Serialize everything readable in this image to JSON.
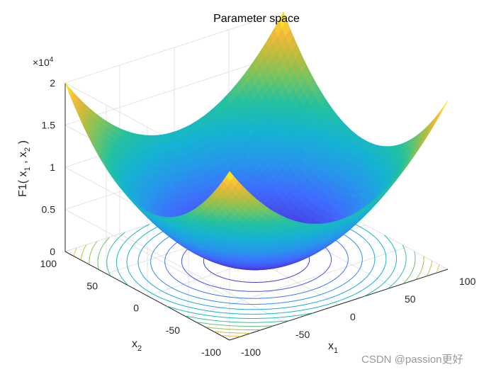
{
  "chart_data": {
    "type": "surface",
    "title": "Parameter space",
    "function": "x1^2 + x2^2",
    "x1": {
      "label_base": "x",
      "label_sub": "1",
      "range": [
        -100,
        100
      ],
      "ticks": [
        "-100",
        "-50",
        "0",
        "50",
        "100"
      ]
    },
    "x2": {
      "label_base": "x",
      "label_sub": "2",
      "range": [
        -100,
        100
      ],
      "ticks": [
        "-100",
        "-50",
        "0",
        "50",
        "100"
      ]
    },
    "z": {
      "label_parts": {
        "pre": "F1( x",
        "sub1": "1",
        "mid": " , x",
        "sub2": "2",
        "post": " )"
      },
      "range": [
        0,
        20000
      ],
      "ticks": [
        "0",
        "0.5",
        "1",
        "1.5",
        "2"
      ],
      "exponent_prefix": "×10",
      "exponent_power": "4"
    },
    "contours": {
      "shown": true,
      "levels": [
        1500,
        3000,
        4500,
        6000,
        7500,
        9000,
        10500,
        12000,
        13500,
        15000,
        16500,
        18000
      ]
    },
    "grid": true,
    "colormap": "parula"
  },
  "watermark": "CSDN @passion更好"
}
